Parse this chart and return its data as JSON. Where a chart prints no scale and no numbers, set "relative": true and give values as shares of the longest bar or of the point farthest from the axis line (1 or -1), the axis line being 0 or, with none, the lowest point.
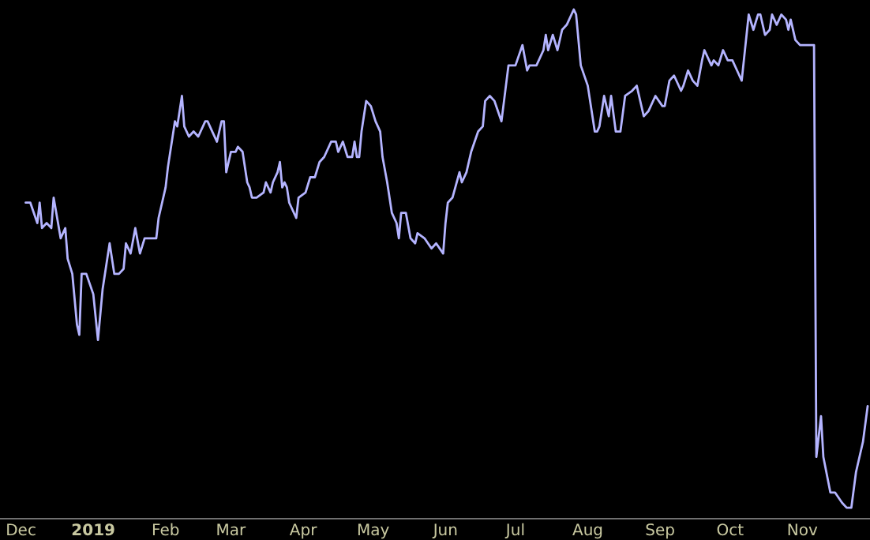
{
  "chart_data": {
    "type": "line",
    "relative": true,
    "x": [
      "2018-12-03",
      "2018-12-05",
      "2018-12-08",
      "2018-12-09",
      "2018-12-10",
      "2018-12-12",
      "2018-12-14",
      "2018-12-15",
      "2018-12-18",
      "2018-12-20",
      "2018-12-21",
      "2018-12-23",
      "2018-12-25",
      "2018-12-26",
      "2018-12-27",
      "2018-12-29",
      "2019-01-01",
      "2019-01-03",
      "2019-01-05",
      "2019-01-08",
      "2019-01-10",
      "2019-01-12",
      "2019-01-14",
      "2019-01-15",
      "2019-01-17",
      "2019-01-19",
      "2019-01-21",
      "2019-01-23",
      "2019-01-28",
      "2019-01-29",
      "2019-02-01",
      "2019-02-02",
      "2019-02-05",
      "2019-02-06",
      "2019-02-08",
      "2019-02-09",
      "2019-02-11",
      "2019-02-13",
      "2019-02-15",
      "2019-02-18",
      "2019-02-19",
      "2019-02-21",
      "2019-02-23",
      "2019-02-25",
      "2019-02-26",
      "2019-02-27",
      "2019-03-01",
      "2019-03-03",
      "2019-03-04",
      "2019-03-06",
      "2019-03-08",
      "2019-03-09",
      "2019-03-10",
      "2019-03-12",
      "2019-03-15",
      "2019-03-16",
      "2019-03-18",
      "2019-03-19",
      "2019-03-21",
      "2019-03-22",
      "2019-03-23",
      "2019-03-24",
      "2019-03-25",
      "2019-03-26",
      "2019-03-29",
      "2019-03-30",
      "2019-04-02",
      "2019-04-04",
      "2019-04-06",
      "2019-04-08",
      "2019-04-10",
      "2019-04-13",
      "2019-04-15",
      "2019-04-16",
      "2019-04-18",
      "2019-04-20",
      "2019-04-22",
      "2019-04-23",
      "2019-04-24",
      "2019-04-25",
      "2019-04-26",
      "2019-04-28",
      "2019-04-30",
      "2019-05-02",
      "2019-05-04",
      "2019-05-05",
      "2019-05-07",
      "2019-05-09",
      "2019-05-11",
      "2019-05-12",
      "2019-05-13",
      "2019-05-15",
      "2019-05-17",
      "2019-05-19",
      "2019-05-20",
      "2019-05-23",
      "2019-05-26",
      "2019-05-28",
      "2019-05-31",
      "2019-06-01",
      "2019-06-02",
      "2019-06-04",
      "2019-06-07",
      "2019-06-08",
      "2019-06-10",
      "2019-06-12",
      "2019-06-15",
      "2019-06-17",
      "2019-06-18",
      "2019-06-20",
      "2019-06-22",
      "2019-06-25",
      "2019-06-28",
      "2019-07-01",
      "2019-07-04",
      "2019-07-06",
      "2019-07-07",
      "2019-07-10",
      "2019-07-13",
      "2019-07-14",
      "2019-07-15",
      "2019-07-17",
      "2019-07-19",
      "2019-07-21",
      "2019-07-23",
      "2019-07-26",
      "2019-07-27",
      "2019-07-29",
      "2019-08-01",
      "2019-08-04",
      "2019-08-05",
      "2019-08-06",
      "2019-08-08",
      "2019-08-10",
      "2019-08-11",
      "2019-08-13",
      "2019-08-15",
      "2019-08-17",
      "2019-08-20",
      "2019-08-22",
      "2019-08-25",
      "2019-08-27",
      "2019-08-30",
      "2019-09-02",
      "2019-09-03",
      "2019-09-05",
      "2019-09-07",
      "2019-09-10",
      "2019-09-11",
      "2019-09-13",
      "2019-09-15",
      "2019-09-17",
      "2019-09-19",
      "2019-09-20",
      "2019-09-22",
      "2019-09-23",
      "2019-09-24",
      "2019-09-26",
      "2019-09-28",
      "2019-09-30",
      "2019-10-02",
      "2019-10-04",
      "2019-10-06",
      "2019-10-09",
      "2019-10-11",
      "2019-10-13",
      "2019-10-14",
      "2019-10-16",
      "2019-10-18",
      "2019-10-19",
      "2019-10-21",
      "2019-10-23",
      "2019-10-25",
      "2019-10-26",
      "2019-10-27",
      "2019-10-29",
      "2019-10-31",
      "2019-11-02",
      "2019-11-06",
      "2019-11-07",
      "2019-11-09",
      "2019-11-10",
      "2019-11-13",
      "2019-11-15",
      "2019-11-18",
      "2019-11-20",
      "2019-11-22",
      "2019-11-24",
      "2019-11-26",
      "2019-11-27",
      "2019-11-29"
    ],
    "series": [
      {
        "color": "#b4b4ff",
        "values": [
          0.62,
          0.62,
          0.58,
          0.62,
          0.57,
          0.58,
          0.57,
          0.63,
          0.55,
          0.57,
          0.51,
          0.48,
          0.38,
          0.36,
          0.48,
          0.48,
          0.44,
          0.35,
          0.45,
          0.54,
          0.48,
          0.48,
          0.49,
          0.54,
          0.52,
          0.57,
          0.52,
          0.55,
          0.55,
          0.59,
          0.65,
          0.69,
          0.78,
          0.77,
          0.83,
          0.77,
          0.75,
          0.76,
          0.75,
          0.78,
          0.78,
          0.76,
          0.74,
          0.78,
          0.78,
          0.68,
          0.72,
          0.72,
          0.73,
          0.72,
          0.66,
          0.65,
          0.63,
          0.63,
          0.64,
          0.66,
          0.64,
          0.66,
          0.68,
          0.7,
          0.65,
          0.66,
          0.65,
          0.62,
          0.59,
          0.63,
          0.64,
          0.67,
          0.67,
          0.7,
          0.71,
          0.74,
          0.74,
          0.72,
          0.74,
          0.71,
          0.71,
          0.74,
          0.71,
          0.71,
          0.76,
          0.82,
          0.81,
          0.78,
          0.76,
          0.71,
          0.66,
          0.6,
          0.58,
          0.55,
          0.6,
          0.6,
          0.55,
          0.54,
          0.56,
          0.55,
          0.53,
          0.54,
          0.52,
          0.58,
          0.62,
          0.63,
          0.68,
          0.66,
          0.68,
          0.72,
          0.76,
          0.77,
          0.82,
          0.83,
          0.82,
          0.78,
          0.89,
          0.89,
          0.93,
          0.88,
          0.89,
          0.89,
          0.92,
          0.95,
          0.92,
          0.95,
          0.92,
          0.96,
          0.97,
          1.0,
          0.99,
          0.89,
          0.85,
          0.76,
          0.76,
          0.77,
          0.83,
          0.79,
          0.83,
          0.76,
          0.76,
          0.83,
          0.84,
          0.85,
          0.79,
          0.8,
          0.83,
          0.81,
          0.81,
          0.86,
          0.87,
          0.84,
          0.85,
          0.88,
          0.86,
          0.85,
          0.9,
          0.92,
          0.9,
          0.89,
          0.9,
          0.89,
          0.92,
          0.9,
          0.9,
          0.88,
          0.86,
          0.99,
          0.96,
          0.99,
          0.99,
          0.95,
          0.96,
          0.99,
          0.97,
          0.99,
          0.98,
          0.96,
          0.98,
          0.94,
          0.93,
          0.93,
          0.93,
          0.12,
          0.2,
          0.12,
          0.05,
          0.05,
          0.03,
          0.02,
          0.02,
          0.09,
          0.13,
          0.15,
          0.22
        ]
      }
    ],
    "xlim": [
      "2018-11-22",
      "2019-11-30"
    ],
    "xticks": [
      {
        "value": "2018-12-01",
        "label": "Dec"
      },
      {
        "value": "2019-01-01",
        "label": "2019"
      },
      {
        "value": "2019-02-01",
        "label": "Feb"
      },
      {
        "value": "2019-03-01",
        "label": "Mar"
      },
      {
        "value": "2019-04-01",
        "label": "Apr"
      },
      {
        "value": "2019-05-01",
        "label": "May"
      },
      {
        "value": "2019-06-01",
        "label": "Jun"
      },
      {
        "value": "2019-07-01",
        "label": "Jul"
      },
      {
        "value": "2019-08-01",
        "label": "Aug"
      },
      {
        "value": "2019-09-01",
        "label": "Sep"
      },
      {
        "value": "2019-10-01",
        "label": "Oct"
      },
      {
        "value": "2019-11-01",
        "label": "Nov"
      }
    ]
  }
}
